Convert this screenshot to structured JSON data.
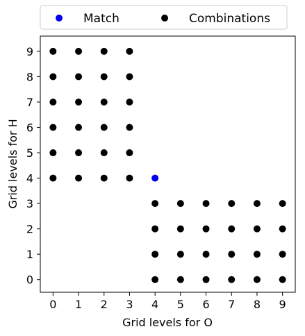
{
  "chart_data": {
    "type": "scatter",
    "xlabel": "Grid levels for O",
    "ylabel": "Grid levels for H",
    "xlim": [
      -0.5,
      9.5
    ],
    "ylim": [
      -0.5,
      9.6
    ],
    "xticks": [
      "0",
      "1",
      "2",
      "3",
      "4",
      "5",
      "6",
      "7",
      "8",
      "9"
    ],
    "yticks": [
      "0",
      "1",
      "2",
      "3",
      "4",
      "5",
      "6",
      "7",
      "8",
      "9"
    ],
    "grid": false,
    "legend_position": "top-center",
    "series": [
      {
        "name": "Match",
        "color": "#0000ee",
        "points": [
          [
            4,
            4
          ]
        ]
      },
      {
        "name": "Combinations",
        "color": "#000000",
        "points": [
          [
            0,
            4
          ],
          [
            0,
            5
          ],
          [
            0,
            6
          ],
          [
            0,
            7
          ],
          [
            0,
            8
          ],
          [
            0,
            9
          ],
          [
            1,
            4
          ],
          [
            1,
            5
          ],
          [
            1,
            6
          ],
          [
            1,
            7
          ],
          [
            1,
            8
          ],
          [
            1,
            9
          ],
          [
            2,
            4
          ],
          [
            2,
            5
          ],
          [
            2,
            6
          ],
          [
            2,
            7
          ],
          [
            2,
            8
          ],
          [
            2,
            9
          ],
          [
            3,
            4
          ],
          [
            3,
            5
          ],
          [
            3,
            6
          ],
          [
            3,
            7
          ],
          [
            3,
            8
          ],
          [
            3,
            9
          ],
          [
            4,
            0
          ],
          [
            4,
            1
          ],
          [
            4,
            2
          ],
          [
            4,
            3
          ],
          [
            5,
            0
          ],
          [
            5,
            1
          ],
          [
            5,
            2
          ],
          [
            5,
            3
          ],
          [
            6,
            0
          ],
          [
            6,
            1
          ],
          [
            6,
            2
          ],
          [
            6,
            3
          ],
          [
            7,
            0
          ],
          [
            7,
            1
          ],
          [
            7,
            2
          ],
          [
            7,
            3
          ],
          [
            8,
            0
          ],
          [
            8,
            1
          ],
          [
            8,
            2
          ],
          [
            8,
            3
          ],
          [
            9,
            0
          ],
          [
            9,
            1
          ],
          [
            9,
            2
          ],
          [
            9,
            3
          ]
        ]
      }
    ]
  }
}
